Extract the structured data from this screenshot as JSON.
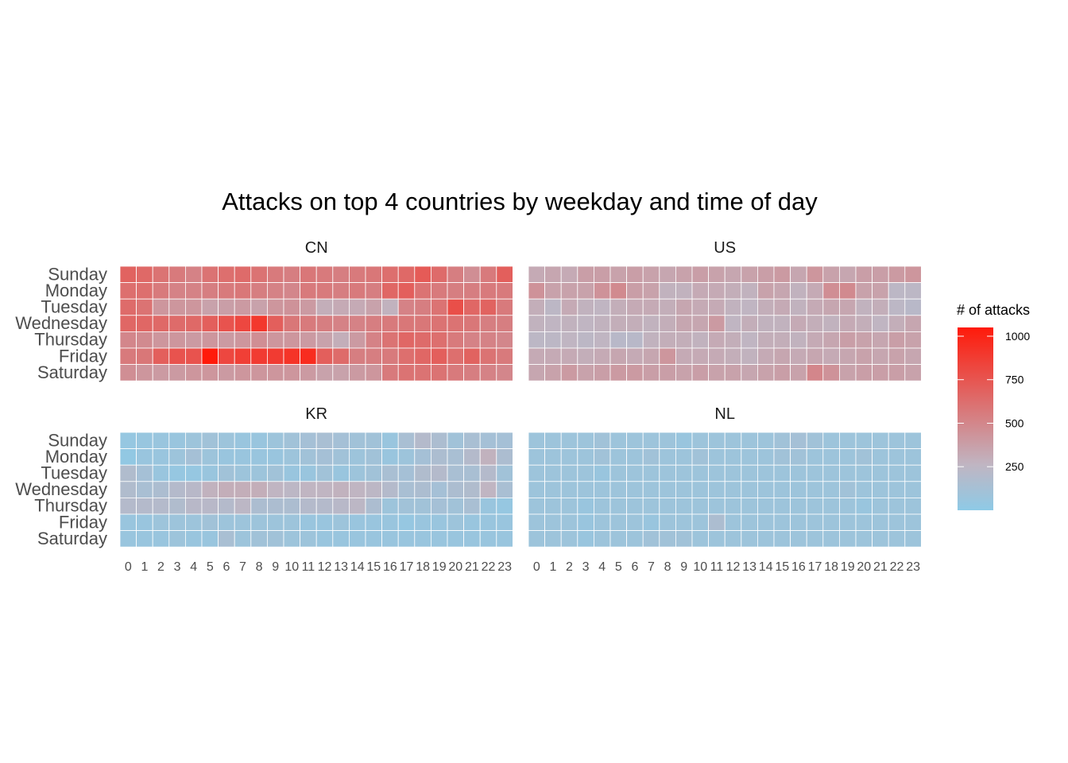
{
  "chart_data": {
    "type": "heatmap",
    "title": "Attacks on top 4 countries by weekday and time of day",
    "weekdays": [
      "Sunday",
      "Monday",
      "Tuesday",
      "Wednesday",
      "Thursday",
      "Friday",
      "Saturday"
    ],
    "hours": [
      "0",
      "1",
      "2",
      "3",
      "4",
      "5",
      "6",
      "7",
      "8",
      "9",
      "10",
      "11",
      "12",
      "13",
      "14",
      "15",
      "16",
      "17",
      "18",
      "19",
      "20",
      "21",
      "22",
      "23"
    ],
    "legend": {
      "title": "# of attacks",
      "ticks": [
        "250",
        "500",
        "750",
        "1000"
      ],
      "tick_values": [
        250,
        500,
        750,
        1000
      ],
      "range": [
        0,
        1050
      ],
      "position": "right"
    },
    "colors": {
      "low": "#8ecae6",
      "mid": "#c0b5c2",
      "high": "#ff1a0a"
    },
    "panels": [
      {
        "name": "CN",
        "values": [
          [
            680,
            650,
            600,
            560,
            520,
            600,
            620,
            640,
            600,
            560,
            540,
            580,
            560,
            540,
            560,
            580,
            620,
            650,
            720,
            640,
            540,
            460,
            560,
            700
          ],
          [
            620,
            620,
            560,
            520,
            520,
            540,
            560,
            580,
            540,
            520,
            500,
            560,
            560,
            540,
            560,
            540,
            660,
            700,
            600,
            560,
            540,
            540,
            560,
            560
          ],
          [
            640,
            600,
            420,
            420,
            420,
            360,
            380,
            400,
            360,
            420,
            440,
            400,
            300,
            320,
            320,
            360,
            280,
            520,
            540,
            600,
            780,
            660,
            680,
            560
          ],
          [
            660,
            660,
            650,
            640,
            650,
            700,
            760,
            820,
            900,
            700,
            580,
            560,
            540,
            520,
            520,
            540,
            560,
            580,
            580,
            600,
            600,
            580,
            540,
            540
          ],
          [
            500,
            480,
            420,
            420,
            400,
            420,
            400,
            420,
            460,
            420,
            420,
            400,
            360,
            300,
            400,
            520,
            600,
            660,
            640,
            620,
            560,
            520,
            520,
            500
          ],
          [
            560,
            580,
            700,
            760,
            760,
            1050,
            820,
            860,
            880,
            880,
            920,
            960,
            700,
            640,
            540,
            540,
            560,
            620,
            660,
            700,
            620,
            680,
            600,
            560
          ],
          [
            460,
            420,
            400,
            400,
            420,
            420,
            400,
            420,
            420,
            420,
            420,
            400,
            360,
            360,
            400,
            420,
            560,
            600,
            600,
            600,
            560,
            540,
            520,
            500
          ]
        ]
      },
      {
        "name": "US",
        "values": [
          [
            320,
            340,
            320,
            380,
            380,
            360,
            380,
            360,
            340,
            360,
            380,
            360,
            340,
            360,
            380,
            400,
            340,
            420,
            360,
            340,
            380,
            380,
            400,
            420
          ],
          [
            440,
            360,
            360,
            360,
            440,
            480,
            380,
            360,
            280,
            280,
            320,
            320,
            300,
            280,
            360,
            340,
            280,
            320,
            460,
            480,
            360,
            360,
            240,
            240
          ],
          [
            300,
            240,
            320,
            280,
            260,
            300,
            320,
            320,
            300,
            340,
            320,
            320,
            280,
            260,
            300,
            320,
            280,
            320,
            340,
            340,
            280,
            300,
            240,
            220
          ],
          [
            280,
            260,
            280,
            260,
            280,
            300,
            300,
            280,
            300,
            340,
            340,
            400,
            260,
            300,
            280,
            280,
            320,
            300,
            280,
            320,
            300,
            260,
            300,
            340
          ],
          [
            240,
            240,
            260,
            240,
            260,
            220,
            220,
            280,
            300,
            300,
            280,
            320,
            300,
            260,
            300,
            300,
            280,
            320,
            340,
            380,
            360,
            340,
            380,
            360
          ],
          [
            320,
            320,
            320,
            300,
            320,
            340,
            320,
            340,
            420,
            320,
            320,
            320,
            300,
            280,
            320,
            340,
            320,
            340,
            320,
            340,
            360,
            340,
            360,
            340
          ],
          [
            340,
            360,
            400,
            360,
            380,
            400,
            400,
            380,
            380,
            360,
            380,
            360,
            360,
            340,
            360,
            380,
            360,
            500,
            440,
            360,
            380,
            380,
            380,
            360
          ]
        ]
      },
      {
        "name": "KR",
        "values": [
          [
            40,
            50,
            60,
            60,
            80,
            100,
            80,
            60,
            60,
            80,
            100,
            120,
            140,
            120,
            100,
            100,
            60,
            140,
            200,
            160,
            100,
            140,
            120,
            120
          ],
          [
            20,
            60,
            60,
            80,
            120,
            80,
            60,
            60,
            60,
            60,
            80,
            100,
            120,
            100,
            80,
            100,
            60,
            80,
            120,
            160,
            140,
            200,
            280,
            160
          ],
          [
            180,
            120,
            60,
            40,
            40,
            60,
            100,
            80,
            80,
            100,
            60,
            60,
            100,
            60,
            80,
            100,
            140,
            120,
            180,
            200,
            140,
            140,
            200,
            100
          ],
          [
            180,
            140,
            160,
            200,
            220,
            280,
            300,
            300,
            300,
            260,
            240,
            260,
            260,
            280,
            260,
            240,
            200,
            140,
            160,
            120,
            160,
            180,
            260,
            140
          ],
          [
            200,
            200,
            200,
            180,
            220,
            220,
            200,
            240,
            160,
            160,
            160,
            200,
            200,
            220,
            240,
            160,
            80,
            100,
            100,
            120,
            100,
            140,
            60,
            40
          ],
          [
            60,
            60,
            80,
            80,
            80,
            100,
            80,
            80,
            80,
            80,
            80,
            60,
            60,
            80,
            60,
            60,
            60,
            40,
            60,
            60,
            80,
            60,
            60,
            60
          ],
          [
            60,
            60,
            60,
            80,
            60,
            60,
            140,
            80,
            100,
            100,
            80,
            80,
            60,
            60,
            60,
            60,
            60,
            60,
            60,
            60,
            60,
            60,
            60,
            60
          ]
        ]
      },
      {
        "name": "NL",
        "values": [
          [
            80,
            80,
            80,
            80,
            100,
            80,
            80,
            80,
            80,
            60,
            80,
            80,
            80,
            80,
            80,
            100,
            120,
            100,
            80,
            80,
            80,
            80,
            80,
            80
          ],
          [
            80,
            80,
            80,
            80,
            100,
            80,
            80,
            100,
            80,
            80,
            100,
            80,
            80,
            80,
            80,
            100,
            100,
            80,
            80,
            80,
            100,
            80,
            80,
            80
          ],
          [
            80,
            80,
            80,
            80,
            60,
            80,
            80,
            80,
            80,
            80,
            80,
            80,
            80,
            80,
            80,
            80,
            80,
            80,
            80,
            80,
            80,
            80,
            80,
            80
          ],
          [
            80,
            80,
            80,
            80,
            80,
            80,
            80,
            80,
            80,
            80,
            80,
            80,
            80,
            80,
            80,
            80,
            80,
            80,
            80,
            100,
            80,
            80,
            80,
            80
          ],
          [
            80,
            80,
            80,
            60,
            80,
            80,
            80,
            80,
            80,
            80,
            80,
            80,
            80,
            80,
            80,
            80,
            80,
            80,
            80,
            80,
            60,
            80,
            80,
            80
          ],
          [
            80,
            80,
            80,
            60,
            80,
            80,
            80,
            60,
            80,
            80,
            80,
            160,
            80,
            80,
            80,
            80,
            80,
            80,
            80,
            80,
            80,
            80,
            80,
            80
          ],
          [
            80,
            80,
            80,
            60,
            80,
            80,
            80,
            100,
            100,
            100,
            80,
            80,
            80,
            80,
            80,
            80,
            80,
            80,
            80,
            80,
            80,
            80,
            80,
            80
          ]
        ]
      }
    ]
  }
}
